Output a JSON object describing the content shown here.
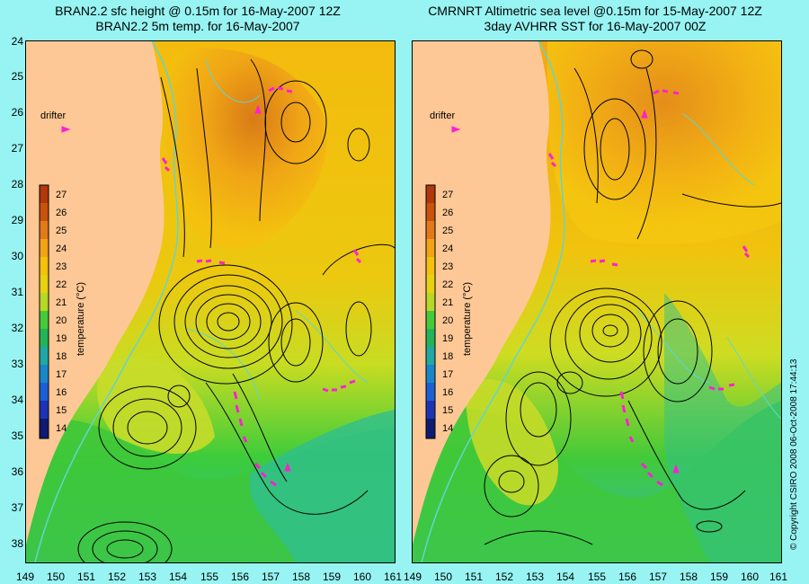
{
  "left_title": {
    "line1": "BRAN2.2 sfc height @ 0.15m for 16-May-2007 12Z",
    "line2": "BRAN2.2 5m temp. for 16-May-2007"
  },
  "right_title": {
    "line1": "CMRNRT Altimetric sea level  @0.15m  for 15-May-2007 12Z",
    "line2": "3day AVHRR SST for 16-May-2007 00Z"
  },
  "drifter_label": "drifter",
  "colorbar": {
    "title": "temperature (°C)",
    "ticks": [
      "27",
      "26",
      "25",
      "24",
      "23",
      "22",
      "21",
      "20",
      "19",
      "18",
      "17",
      "16",
      "15",
      "14"
    ]
  },
  "lat_ticks": [
    "24",
    "25",
    "26",
    "27",
    "28",
    "29",
    "30",
    "31",
    "32",
    "33",
    "34",
    "35",
    "36",
    "37",
    "38"
  ],
  "lon_ticks": [
    "149",
    "150",
    "151",
    "152",
    "153",
    "154",
    "155",
    "156",
    "157",
    "158",
    "159",
    "160",
    "161"
  ],
  "copyright": "© Copyright CSIRO 2008   06-Oct-2008 17:44:13",
  "colors": {
    "land": "#fdc895",
    "warm_core": "#d97a1a",
    "warm": "#f2b30c",
    "mid": "#d7dc1c",
    "cool": "#3cc83a",
    "cold": "#2db8a0",
    "contour": "#000000",
    "isobath": "#5fd6d0",
    "drifter": "#ff1fd2",
    "background": "#97f4f3"
  },
  "map_extent": {
    "lon": [
      149,
      161
    ],
    "lat": [
      24,
      38.5
    ]
  }
}
